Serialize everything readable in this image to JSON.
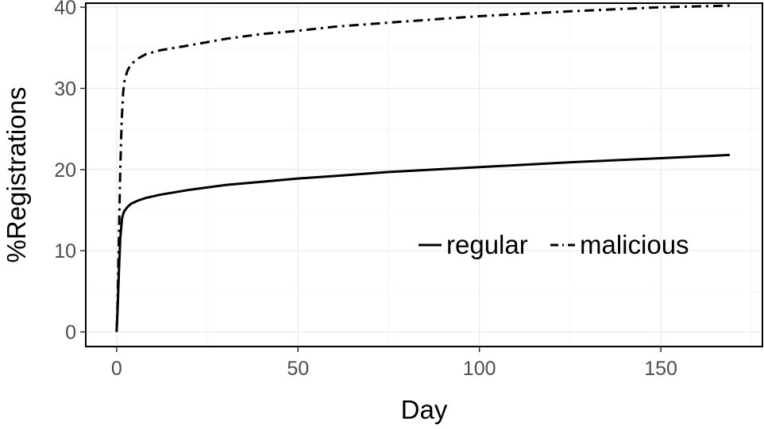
{
  "chart_data": {
    "type": "line",
    "title": "",
    "xlabel": "Day",
    "ylabel": "%Registrations",
    "xlim": [
      -8.5,
      178
    ],
    "ylim": [
      -1.8,
      40.5
    ],
    "xticks": [
      0,
      50,
      100,
      150
    ],
    "yticks": [
      0,
      10,
      20,
      30,
      40
    ],
    "x_tick_labels": [
      "0",
      "50",
      "100",
      "150"
    ],
    "y_tick_labels": [
      "0",
      "10",
      "20",
      "30",
      "40"
    ],
    "grid": true,
    "legend_position": "bottom-right, inside, horizontal",
    "series": [
      {
        "name": "regular",
        "line_style": "solid",
        "color": "#000000",
        "points": [
          [
            0,
            0
          ],
          [
            0.3,
            3
          ],
          [
            0.6,
            7
          ],
          [
            1,
            11.5
          ],
          [
            1.5,
            14
          ],
          [
            2,
            14.8
          ],
          [
            3,
            15.4
          ],
          [
            4,
            15.8
          ],
          [
            6,
            16.2
          ],
          [
            8,
            16.5
          ],
          [
            12,
            16.9
          ],
          [
            20,
            17.5
          ],
          [
            30,
            18.1
          ],
          [
            40,
            18.5
          ],
          [
            50,
            18.9
          ],
          [
            60,
            19.2
          ],
          [
            75,
            19.7
          ],
          [
            100,
            20.3
          ],
          [
            125,
            20.9
          ],
          [
            150,
            21.4
          ],
          [
            169,
            21.8
          ]
        ]
      },
      {
        "name": "malicious",
        "line_style": "dashdot",
        "color": "#000000",
        "points": [
          [
            0,
            0
          ],
          [
            0.3,
            4
          ],
          [
            0.6,
            11
          ],
          [
            1,
            20
          ],
          [
            1.4,
            26
          ],
          [
            1.8,
            29.5
          ],
          [
            2.2,
            31
          ],
          [
            3,
            32.2
          ],
          [
            4,
            33
          ],
          [
            6,
            33.7
          ],
          [
            8,
            34.2
          ],
          [
            12,
            34.7
          ],
          [
            20,
            35.3
          ],
          [
            30,
            36.1
          ],
          [
            40,
            36.7
          ],
          [
            50,
            37.1
          ],
          [
            60,
            37.6
          ],
          [
            75,
            38.1
          ],
          [
            100,
            38.9
          ],
          [
            125,
            39.5
          ],
          [
            150,
            40
          ],
          [
            169,
            40.2
          ]
        ]
      }
    ]
  }
}
